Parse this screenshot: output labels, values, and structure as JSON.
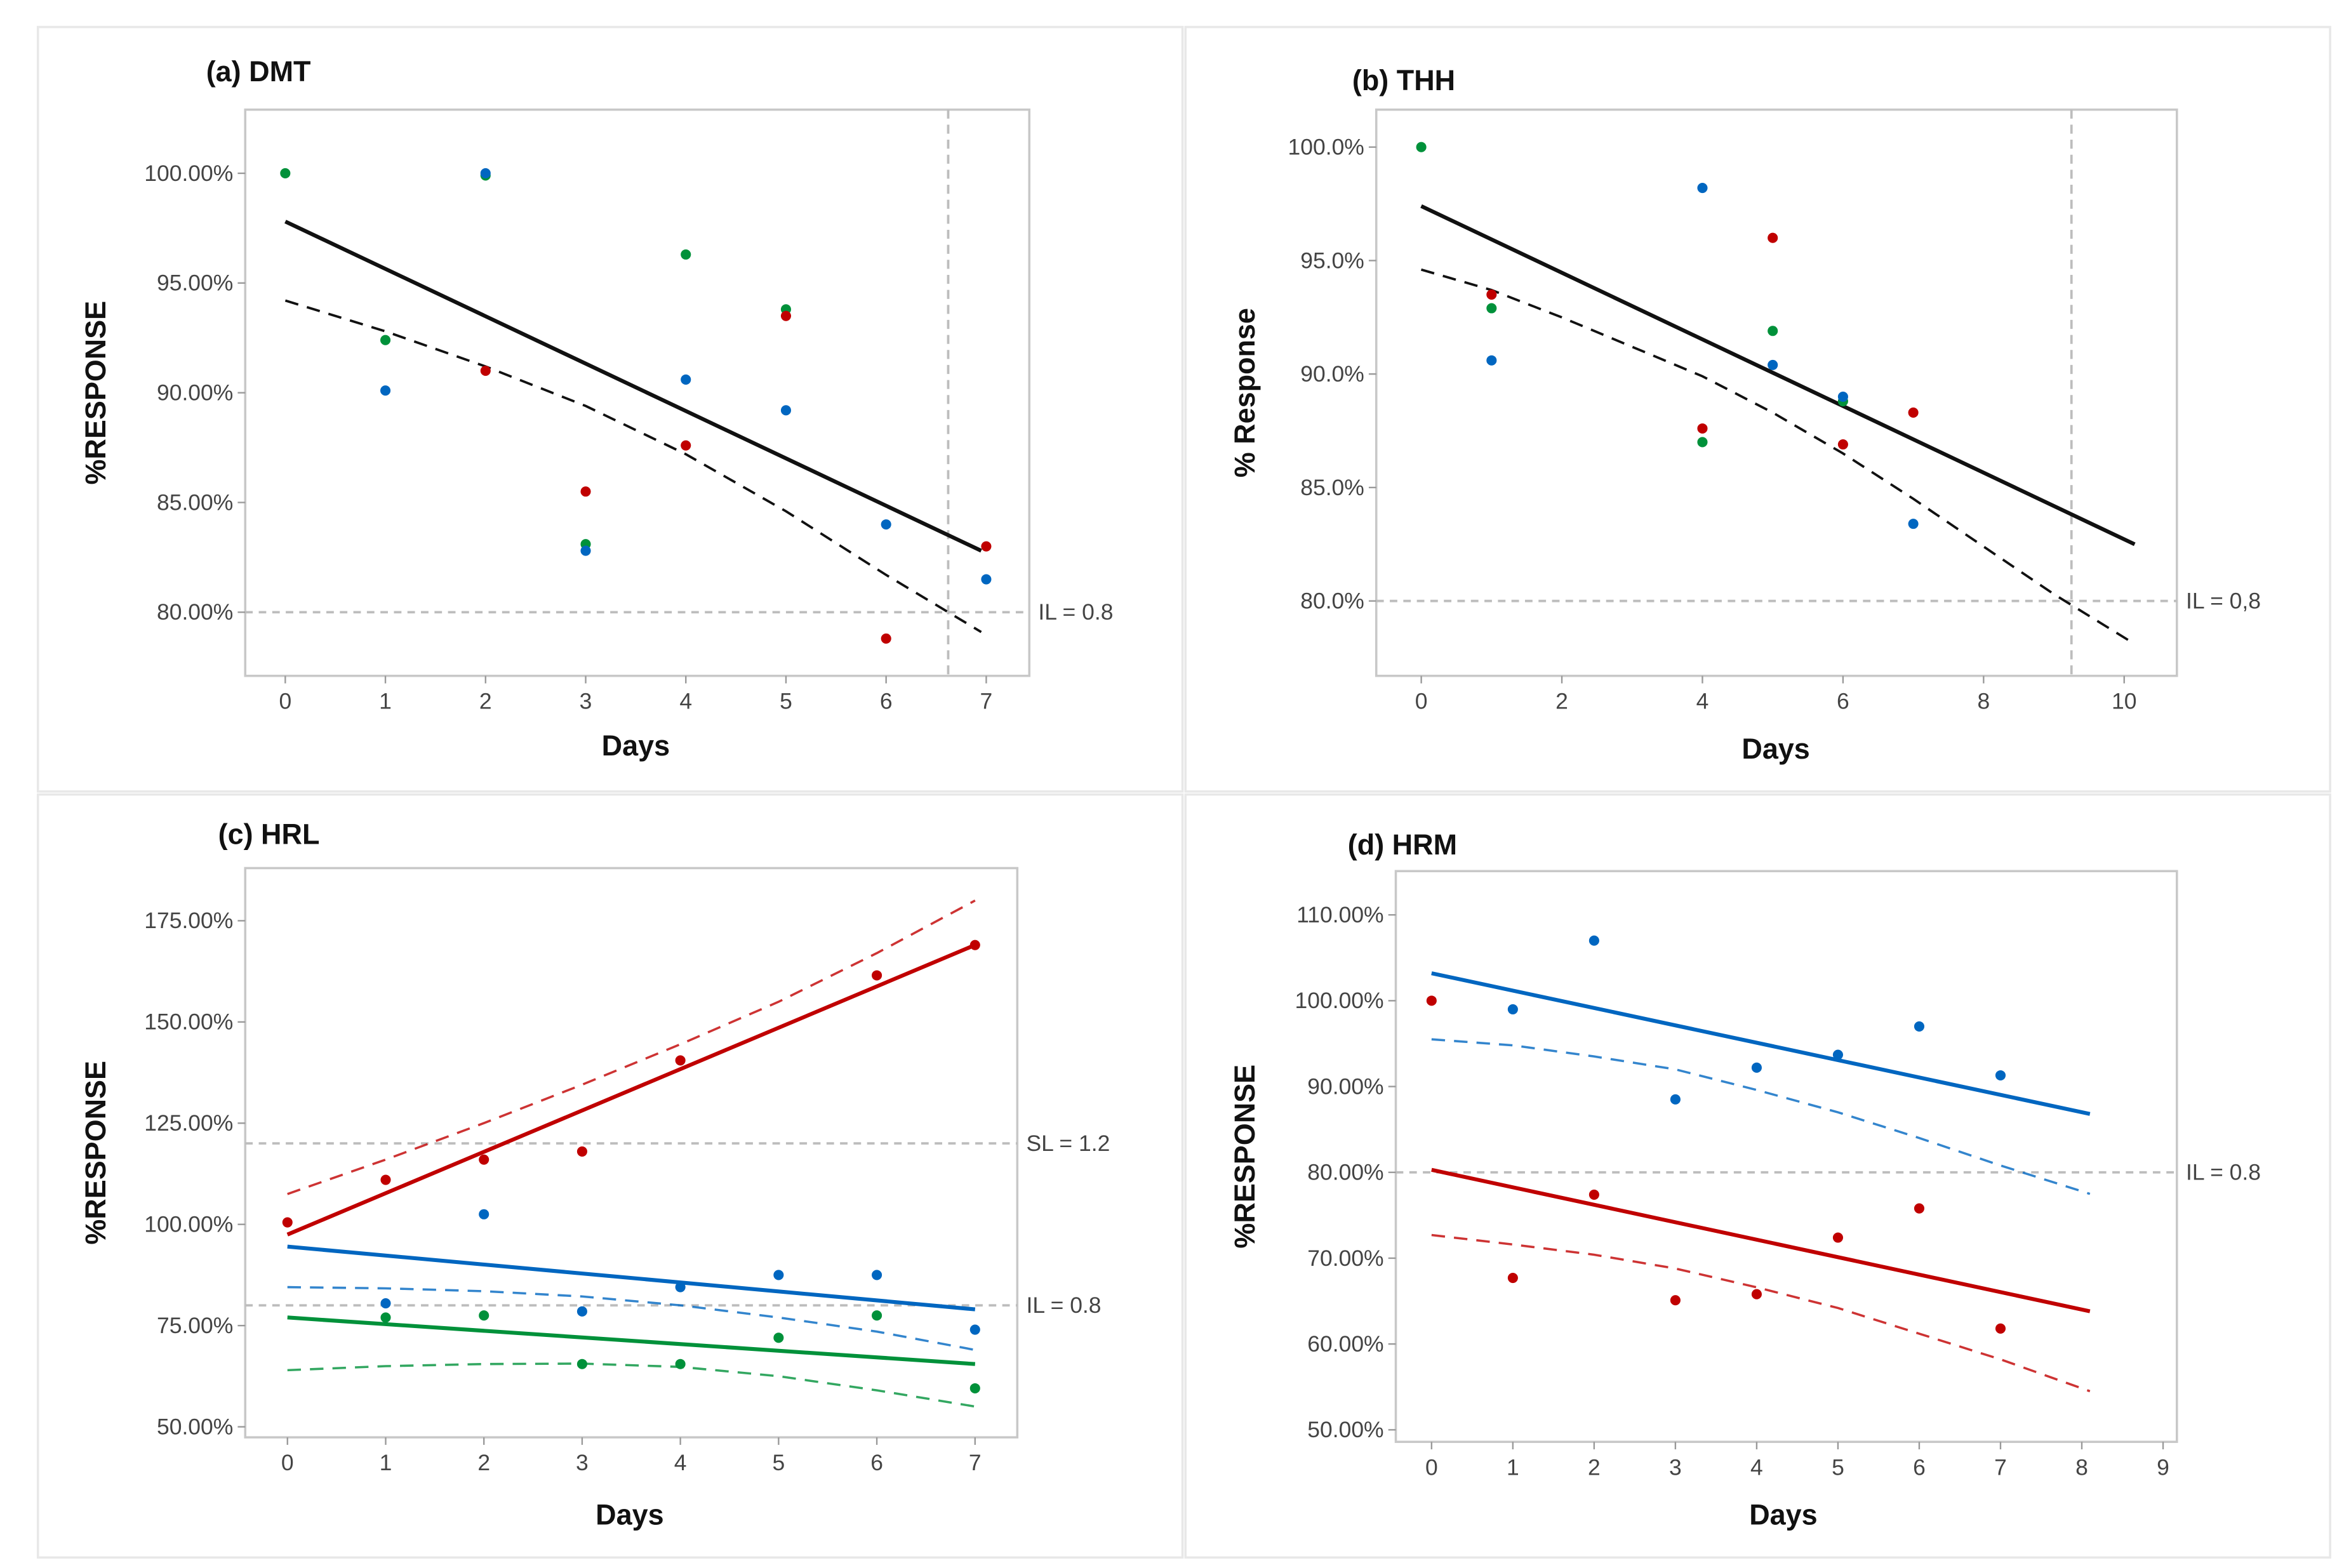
{
  "colors": {
    "blue": "#0066c0",
    "red": "#c00000",
    "green": "#00913a",
    "black": "#111111",
    "ref": "#bdbdbd"
  },
  "chart_data": [
    {
      "type": "scatter",
      "title": "(a) DMT",
      "xlabel": "Days",
      "ylabel": "%RESPONSE",
      "xlim": [
        -0.4,
        7.43
      ],
      "ylim": [
        77.1,
        102.9
      ],
      "xticks": [
        0,
        1,
        2,
        3,
        4,
        5,
        6,
        7
      ],
      "yticks": [
        80,
        85,
        90,
        95,
        100
      ],
      "ytick_labels": [
        "80.00%",
        "85.00%",
        "90.00%",
        "95.00%",
        "100.00%"
      ],
      "hlines": [
        {
          "y": 80,
          "label": "IL = 0.8"
        }
      ],
      "vline": 6.62,
      "points": [
        {
          "series": "green",
          "x": [
            0,
            1,
            2,
            3,
            4,
            5
          ],
          "y": [
            100,
            92.4,
            99.9,
            83.1,
            96.3,
            93.8
          ]
        },
        {
          "series": "blue",
          "x": [
            1,
            2,
            3,
            4,
            5,
            6,
            7
          ],
          "y": [
            90.1,
            100,
            82.8,
            90.6,
            89.2,
            84.0,
            81.5
          ]
        },
        {
          "series": "red",
          "x": [
            2,
            3,
            4,
            5,
            6,
            7
          ],
          "y": [
            91.0,
            85.5,
            87.6,
            93.5,
            78.8,
            83.0
          ]
        }
      ],
      "lines": [
        {
          "series": "black",
          "style": "solid",
          "x": [
            0,
            6.95
          ],
          "y": [
            97.8,
            82.8
          ]
        },
        {
          "series": "black",
          "style": "dashed",
          "x": [
            0,
            1,
            2,
            3,
            4,
            5,
            6,
            6.95
          ],
          "y": [
            94.2,
            92.8,
            91.2,
            89.4,
            87.2,
            84.6,
            81.7,
            79.1
          ]
        }
      ]
    },
    {
      "type": "scatter",
      "title": "(b) THH",
      "xlabel": "Days",
      "ylabel": "% Response",
      "xlim": [
        -0.64,
        10.75
      ],
      "ylim": [
        76.7,
        101.65
      ],
      "xticks": [
        0,
        2,
        4,
        6,
        8,
        10
      ],
      "yticks": [
        80,
        85,
        90,
        95,
        100
      ],
      "ytick_labels": [
        "80.0%",
        "85.0%",
        "90.0%",
        "95.0%",
        "100.0%"
      ],
      "hlines": [
        {
          "y": 80,
          "label": "IL = 0,8"
        }
      ],
      "vline": 9.25,
      "points": [
        {
          "series": "green",
          "x": [
            0,
            1,
            4,
            5,
            6
          ],
          "y": [
            100,
            92.9,
            87.0,
            91.9,
            88.8
          ]
        },
        {
          "series": "blue",
          "x": [
            1,
            4,
            5,
            6,
            7
          ],
          "y": [
            90.6,
            98.2,
            90.4,
            89.0,
            83.4
          ]
        },
        {
          "series": "red",
          "x": [
            1,
            4,
            5,
            6,
            7
          ],
          "y": [
            93.5,
            87.6,
            96.0,
            86.9,
            88.3
          ]
        }
      ],
      "lines": [
        {
          "series": "black",
          "style": "solid",
          "x": [
            0,
            10.15
          ],
          "y": [
            97.4,
            82.5
          ]
        },
        {
          "series": "black",
          "style": "dashed",
          "x": [
            0,
            1,
            2,
            3,
            4,
            5,
            6,
            7,
            8,
            9,
            10.15
          ],
          "y": [
            94.6,
            93.7,
            92.5,
            91.2,
            89.9,
            88.3,
            86.5,
            84.5,
            82.4,
            80.3,
            78.1
          ]
        }
      ]
    },
    {
      "type": "scatter",
      "title": "(c) HRL",
      "xlabel": "Days",
      "ylabel": "%RESPONSE",
      "xlim": [
        -0.43,
        7.43
      ],
      "ylim": [
        47.4,
        188
      ],
      "xticks": [
        0,
        1,
        2,
        3,
        4,
        5,
        6,
        7
      ],
      "yticks": [
        50,
        75,
        100,
        125,
        150,
        175
      ],
      "ytick_labels": [
        "50.00%",
        "75.00%",
        "100.00%",
        "125.00%",
        "150.00%",
        "175.00%"
      ],
      "hlines": [
        {
          "y": 120,
          "label": "SL = 1.2"
        },
        {
          "y": 80,
          "label": "IL = 0.8"
        }
      ],
      "vline": null,
      "points": [
        {
          "series": "red",
          "x": [
            0,
            1,
            2,
            3,
            4,
            6,
            7
          ],
          "y": [
            100.5,
            111,
            116,
            118,
            140.5,
            161.5,
            169
          ]
        },
        {
          "series": "blue",
          "x": [
            1,
            2,
            3,
            4,
            5,
            6,
            7
          ],
          "y": [
            80.5,
            102.5,
            78.5,
            84.5,
            87.5,
            87.5,
            74
          ]
        },
        {
          "series": "green",
          "x": [
            1,
            2,
            3,
            4,
            5,
            6,
            7
          ],
          "y": [
            77,
            77.5,
            65.5,
            65.5,
            72,
            77.5,
            59.5
          ]
        }
      ],
      "lines": [
        {
          "series": "red",
          "style": "solid",
          "x": [
            0,
            7
          ],
          "y": [
            97.5,
            169
          ]
        },
        {
          "series": "red",
          "style": "dashed",
          "x": [
            0,
            1,
            2,
            3,
            4,
            5,
            6,
            7
          ],
          "y": [
            107.5,
            116,
            125,
            134.5,
            144.5,
            155,
            167,
            180
          ]
        },
        {
          "series": "blue",
          "style": "solid",
          "x": [
            0,
            7
          ],
          "y": [
            94.5,
            79
          ]
        },
        {
          "series": "blue",
          "style": "dashed",
          "x": [
            0,
            1,
            2,
            3,
            4,
            5,
            6,
            7
          ],
          "y": [
            84.5,
            84.2,
            83.5,
            82.2,
            80,
            77,
            73.5,
            69
          ]
        },
        {
          "series": "green",
          "style": "solid",
          "x": [
            0,
            7
          ],
          "y": [
            77,
            65.5
          ]
        },
        {
          "series": "green",
          "style": "dashed",
          "x": [
            0,
            1,
            2,
            3,
            4,
            5,
            6,
            7
          ],
          "y": [
            64,
            65,
            65.5,
            65.6,
            64.8,
            62.5,
            59,
            55
          ]
        }
      ]
    },
    {
      "type": "scatter",
      "title": "(d) HRM",
      "xlabel": "Days",
      "ylabel": "%RESPONSE",
      "xlim": [
        -0.44,
        9.17
      ],
      "ylim": [
        48.6,
        115.1
      ],
      "xticks": [
        0,
        1,
        2,
        3,
        4,
        5,
        6,
        7,
        8,
        9
      ],
      "yticks": [
        50,
        60,
        70,
        80,
        90,
        100,
        110
      ],
      "ytick_labels": [
        "50.00%",
        "60.00%",
        "70.00%",
        "80.00%",
        "90.00%",
        "100.00%",
        "110.00%"
      ],
      "hlines": [
        {
          "y": 80,
          "label": "IL = 0.8"
        }
      ],
      "vline": null,
      "points": [
        {
          "series": "blue",
          "x": [
            1,
            2,
            3,
            4,
            5,
            6,
            7
          ],
          "y": [
            99,
            107,
            88.5,
            92.2,
            93.7,
            97,
            91.3
          ]
        },
        {
          "series": "red",
          "x": [
            0,
            1,
            2,
            3,
            4,
            5,
            6,
            7
          ],
          "y": [
            100,
            67.7,
            77.4,
            65.1,
            65.8,
            72.4,
            75.8,
            61.8
          ]
        }
      ],
      "lines": [
        {
          "series": "blue",
          "style": "solid",
          "x": [
            0,
            8.1
          ],
          "y": [
            103.2,
            86.8
          ]
        },
        {
          "series": "blue",
          "style": "dashed",
          "x": [
            0,
            1,
            2,
            3,
            4,
            5,
            6,
            7,
            8.1
          ],
          "y": [
            95.5,
            94.8,
            93.5,
            92,
            89.6,
            87,
            84,
            80.8,
            77.5
          ]
        },
        {
          "series": "red",
          "style": "solid",
          "x": [
            0,
            8.1
          ],
          "y": [
            80.3,
            63.8
          ]
        },
        {
          "series": "red",
          "style": "dashed",
          "x": [
            0,
            1,
            2,
            3,
            4,
            5,
            6,
            7,
            8.1
          ],
          "y": [
            72.7,
            71.6,
            70.4,
            68.8,
            66.6,
            64.2,
            61.2,
            58.2,
            54.5
          ]
        }
      ]
    }
  ]
}
